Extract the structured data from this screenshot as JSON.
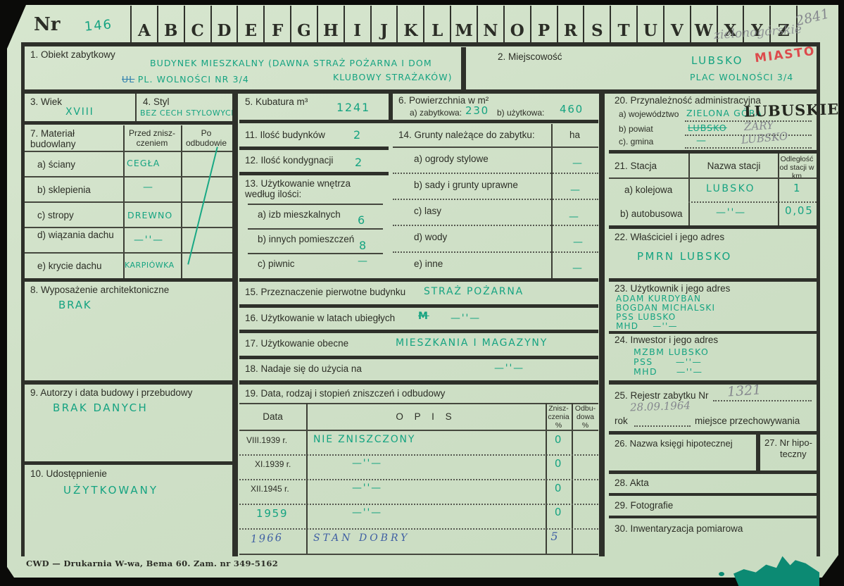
{
  "colors": {
    "card_bg": "#cfe0c7",
    "frame_bar": "#2e302a",
    "green_ink": "#15a381",
    "pencil_gray": "#85878e",
    "red_ink": "#dd4a4c",
    "blue_ink": "#3f5fa3",
    "stamp_black": "#24261f"
  },
  "header": {
    "nr_label": "Nr",
    "nr_value": "146",
    "letters": [
      "A",
      "B",
      "C",
      "D",
      "E",
      "F",
      "G",
      "H",
      "I",
      "J",
      "K",
      "L",
      "M",
      "N",
      "O",
      "P",
      "R",
      "S",
      "T",
      "U",
      "V",
      "W",
      "X",
      "Y",
      "Z"
    ],
    "pencil_script": "zielonogórskie",
    "pencil_number": "2841"
  },
  "f1": {
    "label": "1. Obiekt zabytkowy",
    "line1": "BUDYNEK MIESZKALNY (DAWNA STRAŻ POŻARNA I DOM",
    "line2": "KLUBOWY STRAŻAKÓW)",
    "crossed": "UL",
    "line3": "PL. WOLNOŚCI NR 3/4"
  },
  "f2": {
    "label": "2. Miejscowość",
    "value": "LUBSKO",
    "red_note": "MIASTO",
    "address": "PLAC WOLNOŚCI 3/4"
  },
  "f3": {
    "label": "3. Wiek",
    "value": "XVIII"
  },
  "f4": {
    "label": "4. Styl",
    "value": "BEZ CECH STYLOWYCH"
  },
  "f5": {
    "label": "5. Kubatura m³",
    "value": "1241"
  },
  "f6": {
    "label": "6. Powierzchnia w m²",
    "a_label": "a) zabytkowa:",
    "a_value": "230",
    "b_label": "b) użytkowa:",
    "b_value": "460"
  },
  "f20": {
    "label": "20. Przynależność administracyjna",
    "a_label": "a) województwo",
    "a_value": "ZIELONA GÓRA",
    "stamp": "LUBUSKIE",
    "b_label": "b) powiat",
    "b_value": "LUBSKO",
    "b_pencil": "ŻARY",
    "c_label": "c). gmina",
    "c_value": "—",
    "c_pencil": "LUBSKO"
  },
  "f7": {
    "label": "7. Materiał budowlany",
    "col1": "Przed znisz-czeniem",
    "col2": "Po odbudowie",
    "rows": [
      {
        "label": "a) ściany",
        "value": "CEGŁA"
      },
      {
        "label": "b) sklepienia",
        "value": "—"
      },
      {
        "label": "c) stropy",
        "value": "DREWNO"
      },
      {
        "label": "d) wiązania dachu",
        "value": "—''—"
      },
      {
        "label": "e) krycie dachu",
        "value": "KARPIÓWKA"
      }
    ]
  },
  "f11": {
    "label": "11. Ilość budynków",
    "value": "2"
  },
  "f12": {
    "label": "12. Ilość kondygnacji",
    "value": "2"
  },
  "f13": {
    "label": "13. Użytkowanie wnętrza według ilości:",
    "rows": [
      {
        "label": "a) izb mieszkalnych",
        "value": "6"
      },
      {
        "label": "b) innych pomieszczeń",
        "value": "8"
      },
      {
        "label": "c) piwnic",
        "value": "—"
      }
    ]
  },
  "f14": {
    "label": "14. Grunty należące do zabytku:",
    "unit": "ha",
    "rows": [
      {
        "label": "a) ogrody stylowe",
        "value": "—"
      },
      {
        "label": "b) sady i grunty uprawne",
        "value": "—"
      },
      {
        "label": "c) lasy",
        "value": "—"
      },
      {
        "label": "d) wody",
        "value": "—"
      },
      {
        "label": "e) inne",
        "value": "—"
      }
    ]
  },
  "f21": {
    "label": "21. Stacja",
    "col2": "Nazwa stacji",
    "col3": "Odległość od stacji w km",
    "rows": [
      {
        "label": "a) kolejowa",
        "name": "LUBSKO",
        "dist": "1"
      },
      {
        "label": "b) autobusowa",
        "name": "—''—",
        "dist": "0,05"
      }
    ]
  },
  "f22": {
    "label": "22. Właściciel i jego adres",
    "value": "PMRN LUBSKO"
  },
  "f8": {
    "label": "8. Wyposażenie architektoniczne",
    "value": "BRAK"
  },
  "f15": {
    "label": "15. Przeznaczenie pierwotne budynku",
    "value": "STRAŻ POŻARNA"
  },
  "f16": {
    "label": "16. Użytkowanie w latach ubiegłych",
    "scribble": "M",
    "value": "—''—"
  },
  "f17": {
    "label": "17. Użytkowanie obecne",
    "value": "MIESZKANIA I MAGAZYNY"
  },
  "f18": {
    "label": "18. Nadaje się do użycia na",
    "value": "—''—"
  },
  "f23": {
    "label": "23. Użytkownik i jego adres",
    "lines": [
      "ADAM KURDYBAN",
      "BOGDAN MICHALSKI",
      "PSS LUBSKO",
      "MHD    —''—"
    ]
  },
  "f24": {
    "label": "24. Inwestor i jego adres",
    "lines": [
      "MZBM LUBSKO",
      "PSS      —''—",
      "MHD     —''—"
    ]
  },
  "f9": {
    "label": "9. Autorzy i data budowy i przebudowy",
    "value": "BRAK DANYCH"
  },
  "f19": {
    "label": "19. Data, rodzaj i stopień zniszczeń i odbudowy",
    "col_date": "Data",
    "col_opis": "O P I S",
    "col_zn": "Znisz-czenia %",
    "col_od": "Odbu-dowa %",
    "rows": [
      {
        "date": "VIII.1939 r.",
        "opis": "NIE ZNISZCZONY",
        "zn": "0"
      },
      {
        "date": "XI.1939 r.",
        "opis": "—''—",
        "zn": "0"
      },
      {
        "date": "XII.1945 r.",
        "opis": "—''—",
        "zn": "0"
      },
      {
        "date": "1959",
        "opis": "—''—",
        "zn": "0"
      },
      {
        "date": "1966",
        "opis": "STAN DOBRY",
        "zn": "5"
      }
    ]
  },
  "f25": {
    "label": "25. Rejestr zabytku Nr",
    "pencil_nr": "1321",
    "pencil_date": "28.09.1964",
    "rok_label": "rok",
    "place_label": "miejsce przechowywania"
  },
  "f26": {
    "label": "26. Nazwa księgi hipotecznej"
  },
  "f27": {
    "label_line1": "27. Nr hipo-",
    "label_line2": "teczny"
  },
  "f28": {
    "label": "28. Akta"
  },
  "f29": {
    "label": "29. Fotografie"
  },
  "f30": {
    "label": "30. Inwentaryzacja pomiarowa"
  },
  "f10": {
    "label": "10. Udostępnienie",
    "value": "UŻYTKOWANY"
  },
  "footer": {
    "print_note": "CWD — Drukarnia W-wa, Bema 60. Zam. nr 349-5162"
  }
}
